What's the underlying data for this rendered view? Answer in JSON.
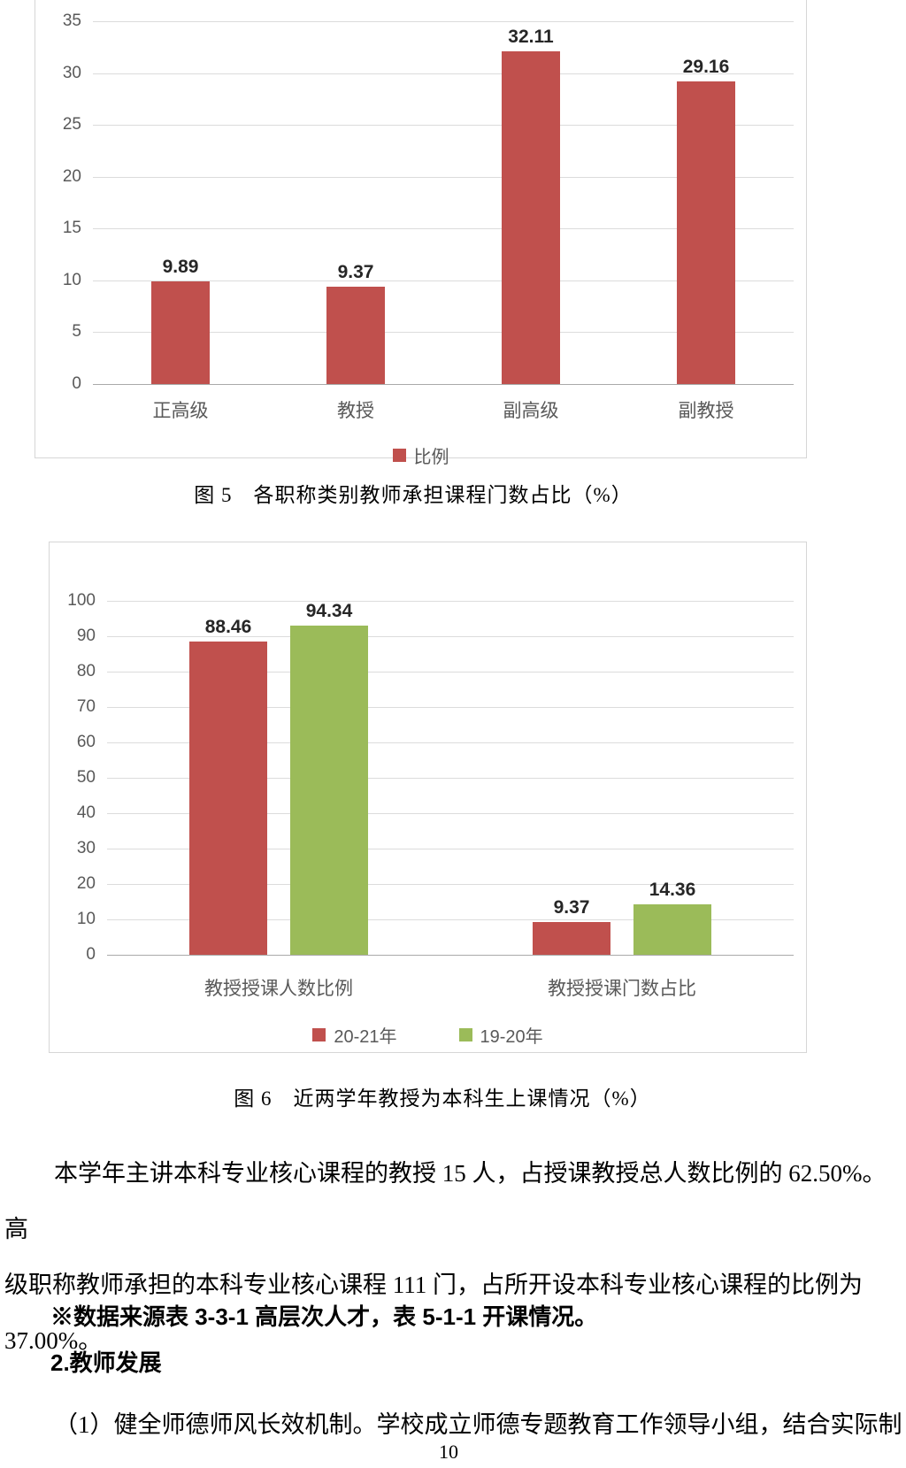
{
  "figures": {
    "fig5_caption": "图 5　各职称类别教师承担课程门数占比（%）",
    "fig6_caption": "图 6　近两学年教授为本科生上课情况（%）"
  },
  "chart_data": [
    {
      "type": "bar",
      "title": "",
      "categories": [
        "正高级",
        "教授",
        "副高级",
        "副教授"
      ],
      "series": [
        {
          "name": "比例",
          "color": "#c0504d",
          "values": [
            9.89,
            9.37,
            32.11,
            29.16
          ]
        }
      ],
      "xlabel": "",
      "ylabel": "",
      "ylim": [
        0,
        35
      ],
      "yticks": [
        35,
        30,
        25,
        20,
        15,
        10,
        5,
        0
      ],
      "grid": true,
      "legend_position": "bottom",
      "data_labels": true,
      "background": "#ffffff",
      "gridline_color": "#dcdcdc"
    },
    {
      "type": "bar",
      "title": "",
      "categories": [
        "教授授课人数比例",
        "教授授课门数占比"
      ],
      "series": [
        {
          "name": "20-21年",
          "color": "#c0504d",
          "values": [
            88.46,
            9.37
          ]
        },
        {
          "name": "19-20年",
          "color": "#9bbb59",
          "values": [
            94.34,
            14.36
          ]
        }
      ],
      "xlabel": "",
      "ylabel": "",
      "ylim": [
        0,
        100
      ],
      "yticks": [
        100,
        90,
        80,
        70,
        60,
        50,
        40,
        30,
        20,
        10,
        0
      ],
      "grid": true,
      "legend_position": "bottom",
      "data_labels": true,
      "background": "#ffffff",
      "gridline_color": "#dcdcdc"
    }
  ],
  "text": {
    "paragraph1_lines": [
      "本学年主讲本科专业核心课程的教授 15 人，占授课教授总人数比例的 62.50%。高",
      "级职称教师承担的本科专业核心课程 111 门，占所开设本科专业核心课程的比例为",
      "37.00%。"
    ],
    "footnote": "※数据来源表 3-3-1 高层次人才，表 5-1-1 开课情况。",
    "section_heading": "2.教师发展",
    "paragraph2": "（1）健全师德师风长效机制。学校成立师德专题教育工作领导小组，结合实际制"
  },
  "page": {
    "number": "10"
  }
}
